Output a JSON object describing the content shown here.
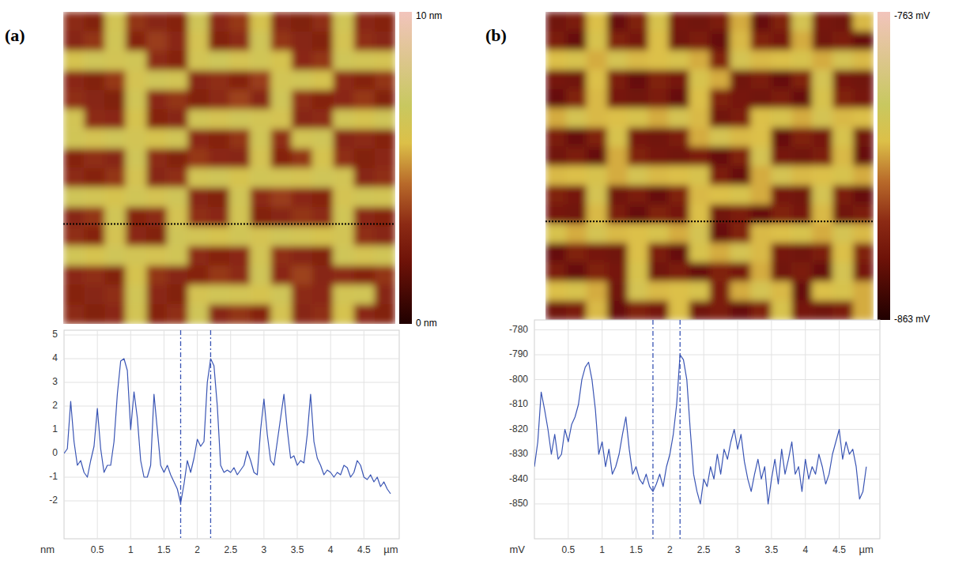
{
  "chart_data": [
    {
      "type": "heatmap",
      "title": "(a)",
      "cells": [
        [
          3.2,
          2.8,
          6.4,
          3.4,
          3.0,
          2.9,
          6.6,
          3.1,
          3.5,
          6.2,
          3.0,
          2.7,
          3.3,
          6.5,
          3.1,
          2.9
        ],
        [
          3.0,
          3.4,
          6.5,
          2.9,
          3.6,
          3.1,
          6.3,
          2.8,
          3.2,
          6.6,
          3.4,
          3.0,
          2.8,
          6.3,
          3.3,
          3.0
        ],
        [
          6.2,
          6.6,
          6.4,
          6.5,
          3.2,
          2.9,
          6.4,
          6.7,
          6.3,
          6.5,
          6.2,
          3.1,
          3.4,
          6.6,
          6.4,
          6.3
        ],
        [
          3.1,
          2.8,
          3.5,
          6.3,
          6.6,
          6.4,
          3.0,
          3.3,
          2.9,
          3.6,
          6.4,
          6.5,
          6.2,
          3.2,
          2.9,
          3.4
        ],
        [
          3.3,
          3.0,
          2.7,
          6.5,
          3.1,
          3.4,
          2.8,
          3.2,
          3.7,
          3.0,
          6.6,
          3.3,
          2.9,
          3.1,
          3.5,
          2.8
        ],
        [
          6.4,
          3.2,
          3.1,
          6.2,
          2.9,
          3.0,
          6.5,
          6.3,
          6.6,
          6.4,
          6.3,
          3.0,
          3.2,
          6.5,
          6.2,
          6.6
        ],
        [
          6.5,
          6.3,
          6.6,
          6.4,
          6.2,
          6.5,
          3.1,
          2.9,
          3.4,
          6.5,
          3.3,
          6.4,
          6.6,
          3.0,
          3.2,
          2.9
        ],
        [
          2.9,
          3.3,
          3.0,
          6.6,
          3.2,
          2.8,
          3.5,
          3.1,
          3.0,
          6.3,
          2.9,
          3.4,
          6.2,
          3.3,
          2.8,
          3.1
        ],
        [
          3.2,
          2.9,
          3.4,
          6.3,
          3.0,
          3.3,
          6.4,
          6.6,
          6.2,
          6.5,
          6.4,
          6.3,
          6.6,
          6.4,
          3.0,
          3.3
        ],
        [
          6.6,
          6.4,
          6.2,
          6.5,
          6.3,
          6.6,
          3.0,
          2.8,
          6.5,
          3.2,
          3.6,
          3.1,
          2.9,
          6.3,
          6.5,
          6.4
        ],
        [
          3.0,
          3.4,
          6.5,
          2.9,
          3.2,
          6.3,
          3.3,
          3.1,
          6.4,
          2.8,
          3.0,
          3.4,
          3.2,
          6.5,
          3.1,
          2.9
        ],
        [
          3.3,
          2.9,
          6.3,
          3.1,
          2.8,
          6.6,
          6.4,
          6.2,
          6.5,
          6.3,
          6.6,
          6.4,
          6.2,
          6.4,
          3.3,
          3.0
        ],
        [
          6.5,
          6.2,
          6.6,
          6.4,
          6.3,
          6.5,
          3.2,
          2.9,
          3.1,
          6.4,
          3.3,
          3.0,
          2.8,
          6.6,
          6.3,
          6.5
        ],
        [
          3.1,
          3.3,
          2.8,
          6.2,
          3.4,
          3.0,
          2.9,
          3.5,
          3.2,
          6.6,
          3.1,
          3.7,
          3.0,
          3.2,
          2.9,
          3.4
        ],
        [
          2.9,
          3.0,
          3.3,
          6.5,
          3.1,
          2.8,
          6.3,
          6.5,
          6.4,
          6.2,
          6.6,
          3.2,
          3.1,
          6.4,
          6.5,
          3.0
        ],
        [
          3.2,
          2.8,
          3.1,
          6.4,
          2.9,
          3.3,
          6.6,
          3.0,
          3.4,
          2.9,
          6.3,
          3.0,
          3.3,
          6.2,
          3.1,
          2.8
        ]
      ],
      "colorbar_range": [
        0,
        10
      ],
      "colorbar_ticks": [
        {
          "value": 10,
          "label": "10 nm"
        },
        {
          "value": 0,
          "label": "0 nm"
        }
      ],
      "extent_um": [
        0,
        5
      ],
      "scan_line_um": 3.4
    },
    {
      "type": "line",
      "xlabel": "µm",
      "ylabel": "nm",
      "x": [
        0,
        0.05,
        0.1,
        0.15,
        0.2,
        0.25,
        0.3,
        0.35,
        0.4,
        0.45,
        0.5,
        0.55,
        0.6,
        0.65,
        0.7,
        0.75,
        0.8,
        0.85,
        0.9,
        0.95,
        1,
        1.05,
        1.1,
        1.15,
        1.2,
        1.25,
        1.3,
        1.35,
        1.4,
        1.45,
        1.5,
        1.55,
        1.6,
        1.65,
        1.7,
        1.75,
        1.8,
        1.85,
        1.9,
        1.95,
        2,
        2.05,
        2.1,
        2.15,
        2.2,
        2.25,
        2.3,
        2.35,
        2.4,
        2.45,
        2.5,
        2.55,
        2.6,
        2.65,
        2.7,
        2.75,
        2.8,
        2.85,
        2.9,
        2.95,
        3,
        3.05,
        3.1,
        3.15,
        3.2,
        3.25,
        3.3,
        3.35,
        3.4,
        3.45,
        3.5,
        3.55,
        3.6,
        3.65,
        3.7,
        3.75,
        3.8,
        3.85,
        3.9,
        3.95,
        4,
        4.05,
        4.1,
        4.15,
        4.2,
        4.25,
        4.3,
        4.35,
        4.4,
        4.45,
        4.5,
        4.55,
        4.6,
        4.65,
        4.7,
        4.75,
        4.8,
        4.85,
        4.9
      ],
      "series": [
        {
          "color": "#3a55b4",
          "values": [
            0,
            0.2,
            2.2,
            0.5,
            -0.5,
            -0.3,
            -0.8,
            -1.0,
            -0.3,
            0.3,
            1.9,
            0.2,
            -0.8,
            -0.5,
            -0.5,
            0.5,
            2.5,
            3.9,
            4.0,
            3.5,
            1.0,
            2.6,
            1.5,
            -0.3,
            -1.0,
            -1.0,
            -0.5,
            2.5,
            1.0,
            -0.5,
            -0.8,
            -0.5,
            -0.9,
            -1.2,
            -1.5,
            -2.1,
            -1.3,
            -0.3,
            -0.8,
            -0.2,
            0.6,
            0.3,
            0.5,
            3.0,
            4.0,
            3.7,
            2.0,
            -0.5,
            -0.8,
            -0.7,
            -0.8,
            -0.6,
            -0.9,
            -0.7,
            -0.5,
            0.1,
            -0.3,
            -0.8,
            -0.9,
            1.0,
            2.3,
            0.8,
            -0.3,
            -0.5,
            0.5,
            1.5,
            2.5,
            1.0,
            -0.2,
            -0.1,
            -0.5,
            -0.3,
            -0.4,
            0.8,
            2.5,
            0.5,
            -0.2,
            -0.5,
            -0.9,
            -0.7,
            -0.8,
            -1.0,
            -0.8,
            -0.9,
            -0.5,
            -0.6,
            -1.0,
            -0.8,
            -0.3,
            -0.5,
            -1.0,
            -1.1,
            -0.9,
            -1.2,
            -1.0,
            -1.4,
            -1.2,
            -1.5,
            -1.7
          ]
        }
      ],
      "xlim": [
        0,
        5.03
      ],
      "xticks": [
        0.5,
        1,
        1.5,
        2,
        2.5,
        3,
        3.5,
        4,
        4.5
      ],
      "ylim": [
        -3.6,
        5.2
      ],
      "yticks": [
        -2,
        -1,
        0,
        1,
        2,
        3,
        4,
        5
      ],
      "grid": true,
      "cursor_x": [
        1.75,
        2.2
      ]
    },
    {
      "type": "heatmap",
      "title": "(b)",
      "cells": [
        [
          -842,
          -838,
          -805,
          -845,
          -836,
          -802,
          -840,
          -842,
          -838,
          -808,
          -845,
          -836,
          -800,
          -840,
          -842,
          -806
        ],
        [
          -838,
          -845,
          -802,
          -836,
          -840,
          -805,
          -842,
          -838,
          -845,
          -806,
          -836,
          -840,
          -808,
          -842,
          -838,
          -845
        ],
        [
          -805,
          -802,
          -808,
          -800,
          -806,
          -805,
          -802,
          -808,
          -836,
          -800,
          -806,
          -805,
          -802,
          -808,
          -800,
          -806
        ],
        [
          -840,
          -842,
          -805,
          -838,
          -845,
          -836,
          -840,
          -802,
          -808,
          -842,
          -838,
          -845,
          -836,
          -800,
          -840,
          -842
        ],
        [
          -845,
          -836,
          -806,
          -840,
          -842,
          -838,
          -845,
          -805,
          -836,
          -840,
          -842,
          -838,
          -845,
          -802,
          -836,
          -840
        ],
        [
          -808,
          -800,
          -806,
          -805,
          -802,
          -808,
          -800,
          -806,
          -842,
          -838,
          -805,
          -802,
          -808,
          -800,
          -806,
          -805
        ],
        [
          -838,
          -845,
          -836,
          -802,
          -840,
          -842,
          -838,
          -808,
          -800,
          -806,
          -805,
          -845,
          -836,
          -840,
          -802,
          -842
        ],
        [
          -842,
          -838,
          -845,
          -808,
          -836,
          -840,
          -842,
          -838,
          -845,
          -836,
          -800,
          -840,
          -842,
          -838,
          -806,
          -845
        ],
        [
          -806,
          -805,
          -802,
          -808,
          -800,
          -806,
          -805,
          -802,
          -838,
          -845,
          -808,
          -800,
          -806,
          -805,
          -802,
          -808
        ],
        [
          -836,
          -840,
          -800,
          -842,
          -838,
          -845,
          -836,
          -806,
          -805,
          -802,
          -808,
          -840,
          -842,
          -800,
          -838,
          -845
        ],
        [
          -840,
          -842,
          -806,
          -838,
          -845,
          -836,
          -840,
          -805,
          -842,
          -838,
          -845,
          -836,
          -840,
          -806,
          -842,
          -838
        ],
        [
          -802,
          -808,
          -800,
          -806,
          -805,
          -802,
          -808,
          -800,
          -845,
          -836,
          -806,
          -805,
          -802,
          -808,
          -800,
          -806
        ],
        [
          -845,
          -836,
          -840,
          -842,
          -805,
          -838,
          -845,
          -802,
          -808,
          -800,
          -806,
          -840,
          -842,
          -838,
          -805,
          -836
        ],
        [
          -838,
          -845,
          -836,
          -840,
          -802,
          -842,
          -838,
          -845,
          -836,
          -840,
          -808,
          -842,
          -838,
          -845,
          -800,
          -840
        ],
        [
          -805,
          -802,
          -808,
          -842,
          -800,
          -806,
          -805,
          -802,
          -838,
          -808,
          -800,
          -806,
          -845,
          -805,
          -802,
          -808
        ],
        [
          -842,
          -838,
          -806,
          -845,
          -836,
          -840,
          -805,
          -842,
          -838,
          -845,
          -836,
          -802,
          -840,
          -842,
          -838,
          -808
        ]
      ],
      "colorbar_range": [
        -863,
        -763
      ],
      "colorbar_ticks": [
        {
          "value": -763,
          "label": "-763 mV"
        },
        {
          "value": -863,
          "label": "-863 mV"
        }
      ],
      "extent_um": [
        0,
        5
      ],
      "scan_line_um": 3.4
    },
    {
      "type": "line",
      "xlabel": "µm",
      "ylabel": "mV",
      "x": [
        0,
        0.05,
        0.1,
        0.15,
        0.2,
        0.25,
        0.3,
        0.35,
        0.4,
        0.45,
        0.5,
        0.55,
        0.6,
        0.65,
        0.7,
        0.75,
        0.8,
        0.85,
        0.9,
        0.95,
        1,
        1.05,
        1.1,
        1.15,
        1.2,
        1.25,
        1.3,
        1.35,
        1.4,
        1.45,
        1.5,
        1.55,
        1.6,
        1.65,
        1.7,
        1.75,
        1.8,
        1.85,
        1.9,
        1.95,
        2,
        2.05,
        2.1,
        2.15,
        2.2,
        2.25,
        2.3,
        2.35,
        2.4,
        2.45,
        2.5,
        2.55,
        2.6,
        2.65,
        2.7,
        2.75,
        2.8,
        2.85,
        2.9,
        2.95,
        3,
        3.05,
        3.1,
        3.15,
        3.2,
        3.25,
        3.3,
        3.35,
        3.4,
        3.45,
        3.5,
        3.55,
        3.6,
        3.65,
        3.7,
        3.75,
        3.8,
        3.85,
        3.9,
        3.95,
        4,
        4.05,
        4.1,
        4.15,
        4.2,
        4.25,
        4.3,
        4.35,
        4.4,
        4.45,
        4.5,
        4.55,
        4.6,
        4.65,
        4.7,
        4.75,
        4.8,
        4.85,
        4.9
      ],
      "series": [
        {
          "color": "#3a55b4",
          "values": [
            -835,
            -825,
            -805,
            -812,
            -820,
            -830,
            -822,
            -832,
            -830,
            -820,
            -825,
            -818,
            -815,
            -810,
            -800,
            -795,
            -793,
            -800,
            -812,
            -830,
            -825,
            -835,
            -828,
            -838,
            -835,
            -830,
            -822,
            -815,
            -828,
            -838,
            -835,
            -840,
            -842,
            -838,
            -843,
            -845,
            -842,
            -838,
            -843,
            -835,
            -830,
            -822,
            -810,
            -790,
            -792,
            -800,
            -820,
            -838,
            -845,
            -850,
            -840,
            -843,
            -835,
            -840,
            -830,
            -838,
            -828,
            -832,
            -825,
            -820,
            -828,
            -822,
            -833,
            -840,
            -845,
            -838,
            -832,
            -840,
            -835,
            -850,
            -840,
            -832,
            -842,
            -828,
            -838,
            -832,
            -825,
            -838,
            -835,
            -845,
            -832,
            -840,
            -835,
            -838,
            -830,
            -835,
            -842,
            -838,
            -830,
            -825,
            -820,
            -832,
            -825,
            -830,
            -828,
            -835,
            -848,
            -845,
            -835
          ]
        }
      ],
      "xlim": [
        0,
        5.1
      ],
      "xticks": [
        0.5,
        1,
        1.5,
        2,
        2.5,
        3,
        3.5,
        4,
        4.5
      ],
      "ylim": [
        -864,
        -776
      ],
      "yticks": [
        -850,
        -840,
        -830,
        -820,
        -810,
        -800,
        -790,
        -780
      ],
      "grid": true,
      "cursor_x": [
        1.75,
        2.15
      ]
    }
  ]
}
